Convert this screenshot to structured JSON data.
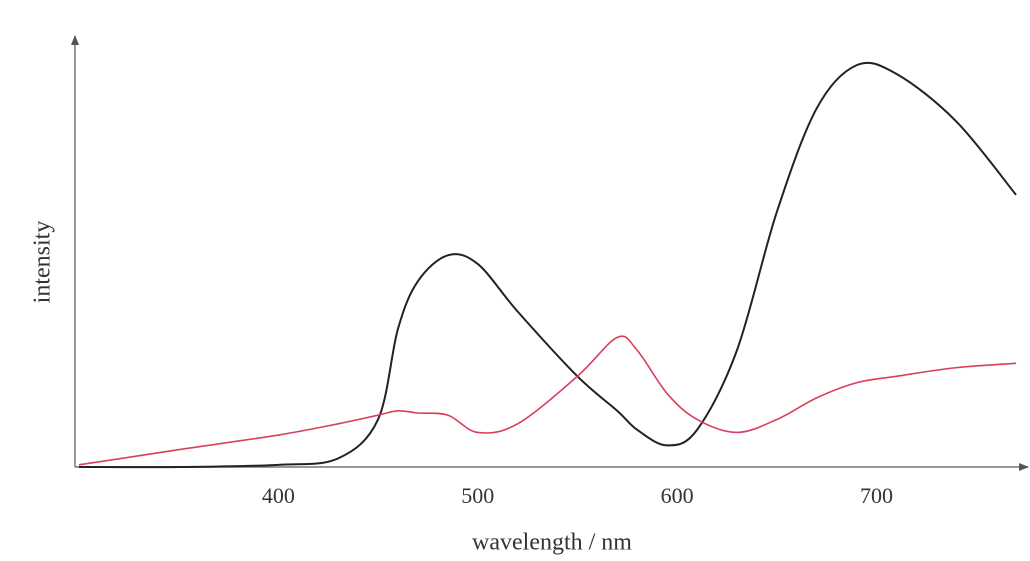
{
  "chart_data": {
    "type": "line",
    "x_label": "wavelength / nm",
    "y_label": "intensity",
    "x": [
      300,
      350,
      400,
      430,
      450,
      460,
      470,
      485,
      500,
      520,
      550,
      570,
      580,
      595,
      610,
      630,
      650,
      670,
      690,
      710,
      740,
      770
    ],
    "series": [
      {
        "color": "#222222",
        "values": [
          0,
          0,
          0.5,
          2,
          11,
          32,
          43,
          49,
          47,
          36,
          21,
          13,
          8.6,
          5,
          8.6,
          27,
          59,
          83,
          93,
          91,
          80,
          63
        ]
      },
      {
        "color": "#d6405c",
        "values": [
          0.5,
          4,
          7.4,
          10,
          12,
          13,
          12.5,
          12,
          8,
          10,
          21,
          30,
          27,
          17,
          11,
          8,
          11,
          16,
          19.5,
          21,
          23,
          24
        ]
      }
    ],
    "xlim": [
      298,
      777
    ],
    "xticks": [
      400,
      500,
      600,
      700
    ],
    "ylim": [
      0,
      100
    ]
  }
}
